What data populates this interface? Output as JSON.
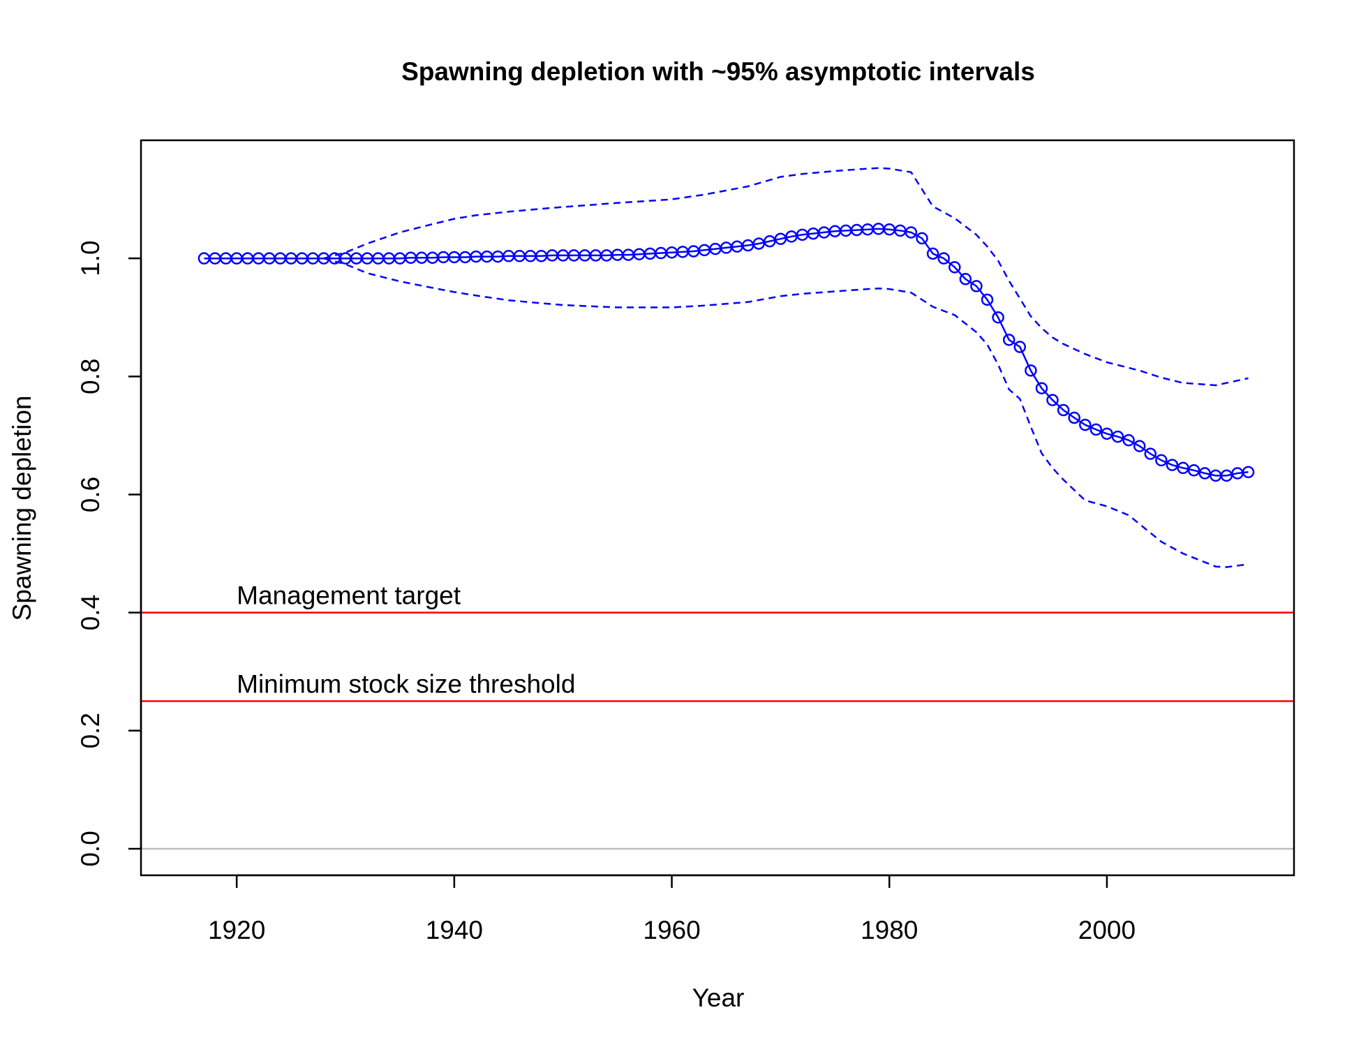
{
  "chart_data": {
    "type": "line",
    "title": "Spawning depletion with ~95% asymptotic intervals",
    "xlabel": "Year",
    "ylabel": "Spawning depletion",
    "xlim": [
      1911.2,
      2017.2
    ],
    "ylim": [
      -0.045,
      1.2
    ],
    "x_ticks": [
      "1920",
      "1940",
      "1960",
      "1980",
      "2000"
    ],
    "y_ticks": [
      "0.0",
      "0.2",
      "0.4",
      "0.6",
      "0.8",
      "1.0"
    ],
    "grid": false,
    "legend": "none",
    "colors": {
      "series": "#0000ff",
      "reference": "#ff0000",
      "zero_line": "#bebebe",
      "axes": "#000000"
    },
    "reference_lines": [
      {
        "label": "Management target",
        "y": 0.4
      },
      {
        "label": "Minimum stock size threshold",
        "y": 0.25
      }
    ],
    "zero_line": 0.0,
    "series": [
      {
        "style": "line+circles",
        "x": [
          1917,
          1918,
          1919,
          1920,
          1921,
          1922,
          1923,
          1924,
          1925,
          1926,
          1927,
          1928,
          1929,
          1930,
          1931,
          1932,
          1933,
          1934,
          1935,
          1936,
          1937,
          1938,
          1939,
          1940,
          1941,
          1942,
          1943,
          1944,
          1945,
          1946,
          1947,
          1948,
          1949,
          1950,
          1951,
          1952,
          1953,
          1954,
          1955,
          1956,
          1957,
          1958,
          1959,
          1960,
          1961,
          1962,
          1963,
          1964,
          1965,
          1966,
          1967,
          1968,
          1969,
          1970,
          1971,
          1972,
          1973,
          1974,
          1975,
          1976,
          1977,
          1978,
          1979,
          1980,
          1981,
          1982,
          1983,
          1984,
          1985,
          1986,
          1987,
          1988,
          1989,
          1990,
          1991,
          1992,
          1993,
          1994,
          1995,
          1996,
          1997,
          1998,
          1999,
          2000,
          2001,
          2002,
          2003,
          2004,
          2005,
          2006,
          2007,
          2008,
          2009,
          2010,
          2011,
          2012,
          2013
        ],
        "y": [
          1.0,
          1.0,
          1.0,
          1.0,
          1.0,
          1.0,
          1.0,
          1.0,
          1.0,
          1.0,
          1.0,
          1.0,
          1.0,
          1.0,
          1.0,
          1.0,
          1.0,
          1.0,
          1.0,
          1.001,
          1.001,
          1.001,
          1.002,
          1.002,
          1.002,
          1.003,
          1.003,
          1.003,
          1.004,
          1.004,
          1.004,
          1.004,
          1.005,
          1.005,
          1.005,
          1.005,
          1.005,
          1.005,
          1.006,
          1.006,
          1.007,
          1.008,
          1.009,
          1.01,
          1.011,
          1.012,
          1.014,
          1.016,
          1.018,
          1.02,
          1.022,
          1.025,
          1.029,
          1.033,
          1.037,
          1.04,
          1.042,
          1.044,
          1.046,
          1.047,
          1.048,
          1.049,
          1.05,
          1.049,
          1.047,
          1.044,
          1.034,
          1.008,
          1.0,
          0.985,
          0.965,
          0.953,
          0.93,
          0.9,
          0.862,
          0.85,
          0.81,
          0.78,
          0.76,
          0.743,
          0.73,
          0.718,
          0.71,
          0.703,
          0.698,
          0.692,
          0.682,
          0.669,
          0.658,
          0.65,
          0.645,
          0.641,
          0.636,
          0.632,
          0.632,
          0.636,
          0.638
        ]
      },
      {
        "style": "dashed",
        "x": [
          1928,
          1930,
          1932,
          1935,
          1938,
          1940,
          1942,
          1945,
          1948,
          1950,
          1955,
          1960,
          1963,
          1967,
          1970,
          1972,
          1975,
          1978,
          1979,
          1980,
          1982,
          1984,
          1986,
          1988,
          1989,
          1990,
          1991,
          1992,
          1993,
          1994,
          1995,
          1996,
          1998,
          2000,
          2003,
          2005,
          2007,
          2010,
          2013
        ],
        "y": [
          1.0,
          1.01,
          1.025,
          1.044,
          1.058,
          1.067,
          1.073,
          1.079,
          1.084,
          1.087,
          1.094,
          1.1,
          1.108,
          1.122,
          1.138,
          1.143,
          1.148,
          1.152,
          1.153,
          1.152,
          1.146,
          1.088,
          1.068,
          1.04,
          1.02,
          0.996,
          0.962,
          0.932,
          0.902,
          0.882,
          0.866,
          0.855,
          0.838,
          0.824,
          0.81,
          0.798,
          0.789,
          0.785,
          0.797
        ]
      },
      {
        "style": "dashed",
        "x": [
          1928,
          1930,
          1932,
          1935,
          1938,
          1940,
          1942,
          1945,
          1948,
          1950,
          1955,
          1960,
          1963,
          1967,
          1970,
          1972,
          1975,
          1978,
          1979,
          1980,
          1982,
          1984,
          1986,
          1988,
          1989,
          1990,
          1991,
          1992,
          1993,
          1994,
          1995,
          1996,
          1998,
          2000,
          2002,
          2003,
          2005,
          2007,
          2010,
          2011,
          2013
        ],
        "y": [
          1.0,
          0.99,
          0.975,
          0.961,
          0.95,
          0.943,
          0.937,
          0.929,
          0.924,
          0.921,
          0.917,
          0.917,
          0.92,
          0.926,
          0.936,
          0.94,
          0.944,
          0.948,
          0.949,
          0.948,
          0.942,
          0.918,
          0.904,
          0.875,
          0.854,
          0.82,
          0.778,
          0.762,
          0.715,
          0.67,
          0.645,
          0.625,
          0.59,
          0.58,
          0.565,
          0.55,
          0.52,
          0.5,
          0.478,
          0.477,
          0.482
        ]
      }
    ]
  }
}
